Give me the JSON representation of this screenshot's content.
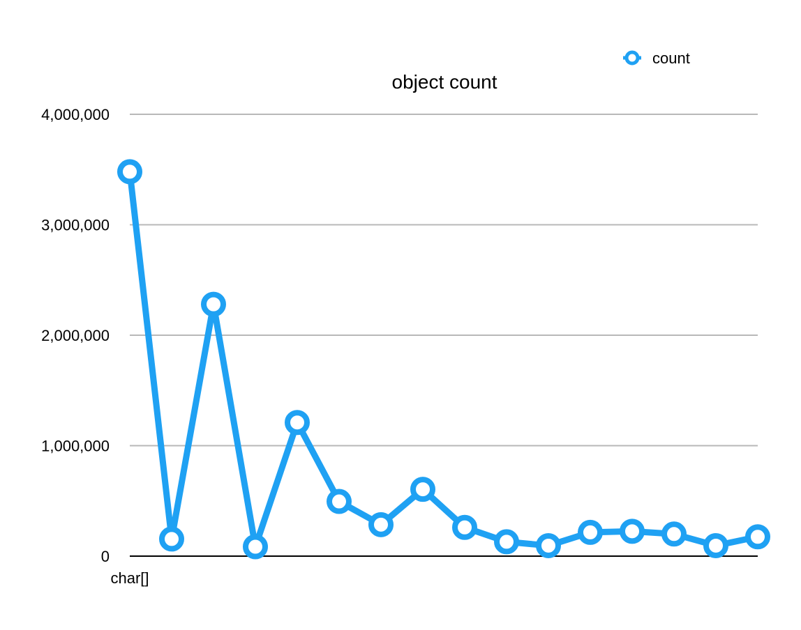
{
  "chart_data": {
    "type": "line",
    "title": "object count",
    "xlabel": "",
    "ylabel": "",
    "categories": [
      "char[]",
      "",
      "",
      "",
      "",
      "",
      "",
      "",
      "",
      "",
      "",
      "",
      "",
      "",
      "",
      ""
    ],
    "series": [
      {
        "name": "count",
        "values": [
          3480000,
          155000,
          2280000,
          85000,
          1210000,
          495000,
          285000,
          605000,
          260000,
          130000,
          95000,
          215000,
          225000,
          200000,
          95000,
          175000
        ]
      }
    ],
    "ylim": [
      0,
      4000000
    ],
    "yticks": [
      0,
      1000000,
      2000000,
      3000000,
      4000000
    ],
    "ytick_labels": [
      "0",
      "1,000,000",
      "2,000,000",
      "3,000,000",
      "4,000,000"
    ],
    "grid": true,
    "legend_position": "top-right",
    "colors": {
      "series": "#1fa1f3",
      "grid": "#b8b8b8",
      "axis": "#000000"
    }
  }
}
